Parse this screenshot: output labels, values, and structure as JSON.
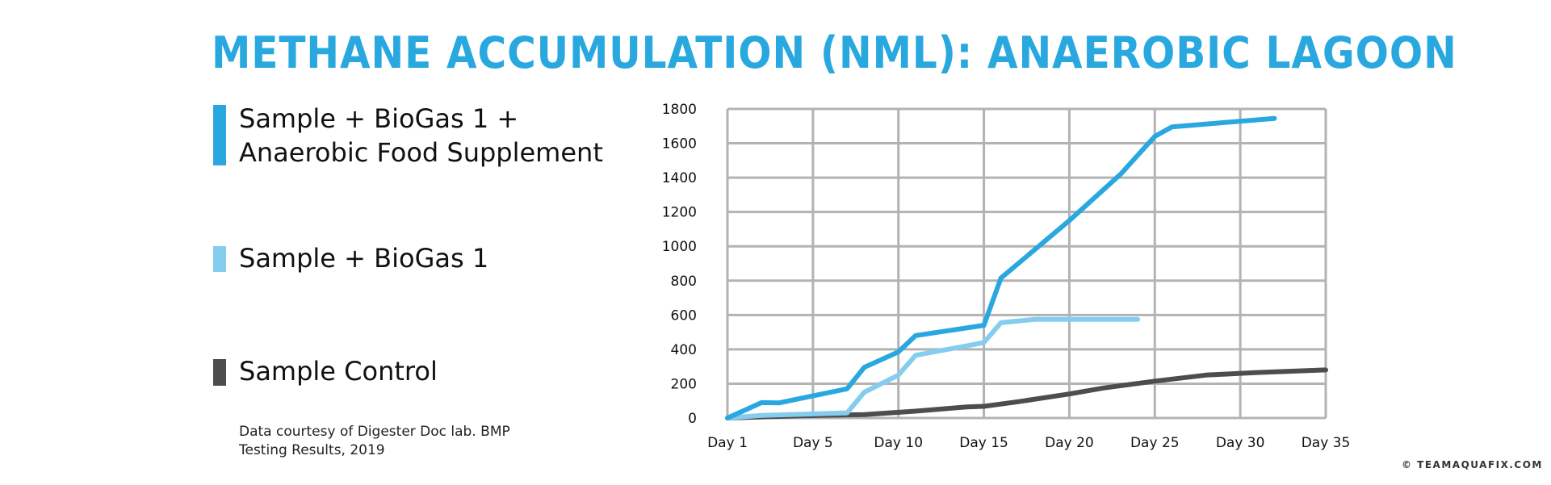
{
  "title": "METHANE ACCUMULATION (NML): ANAEROBIC LAGOON",
  "legend": [
    {
      "label_lines": [
        "Sample + BioGas 1 +",
        "Anaerobic Food Supplement"
      ],
      "color": "#29a8e0"
    },
    {
      "label_lines": [
        "Sample + BioGas 1"
      ],
      "color": "#85cdee"
    },
    {
      "label_lines": [
        "Sample Control"
      ],
      "color": "#4d4d4f"
    }
  ],
  "note": "Data courtesy of Digester Doc lab.  BMP Testing Results, 2019",
  "credit": "© TEAMAQUAFIX.COM",
  "chart_data": {
    "type": "line",
    "title": "METHANE ACCUMULATION (NML): ANAEROBIC LAGOON",
    "xlabel": "",
    "ylabel": "",
    "xlim": [
      1,
      35
    ],
    "ylim": [
      0,
      1800
    ],
    "x_ticks": [
      1,
      6,
      11,
      16,
      21,
      26,
      31,
      36
    ],
    "x_tick_labels": [
      "Day 1",
      "Day 5",
      "Day 10",
      "Day 15",
      "Day 20",
      "Day 25",
      "Day 30",
      "Day 35"
    ],
    "y_ticks": [
      0,
      200,
      400,
      600,
      800,
      1000,
      1200,
      1400,
      1600,
      1800
    ],
    "grid": true,
    "legend_position": "left",
    "series": [
      {
        "name": "Sample + BioGas 1 + Anaerobic Food Supplement",
        "color": "#29a8e0",
        "points": [
          [
            1,
            0
          ],
          [
            3,
            90
          ],
          [
            4,
            88
          ],
          [
            8,
            170
          ],
          [
            9,
            295
          ],
          [
            11,
            385
          ],
          [
            12,
            480
          ],
          [
            16,
            540
          ],
          [
            17,
            815
          ],
          [
            21,
            1150
          ],
          [
            24,
            1420
          ],
          [
            26,
            1640
          ],
          [
            27,
            1695
          ],
          [
            33,
            1745
          ]
        ]
      },
      {
        "name": "Sample + BioGas 1",
        "color": "#85cdee",
        "points": [
          [
            1,
            0
          ],
          [
            3,
            15
          ],
          [
            8,
            30
          ],
          [
            9,
            150
          ],
          [
            11,
            250
          ],
          [
            12,
            365
          ],
          [
            15,
            420
          ],
          [
            16,
            440
          ],
          [
            17,
            555
          ],
          [
            19,
            575
          ],
          [
            25,
            575
          ]
        ]
      },
      {
        "name": "Sample Control",
        "color": "#4d4d4f",
        "points": [
          [
            1,
            0
          ],
          [
            5,
            12
          ],
          [
            9,
            20
          ],
          [
            12,
            40
          ],
          [
            15,
            65
          ],
          [
            16,
            68
          ],
          [
            18,
            95
          ],
          [
            21,
            140
          ],
          [
            23,
            175
          ],
          [
            26,
            215
          ],
          [
            29,
            250
          ],
          [
            32,
            265
          ],
          [
            36,
            280
          ]
        ]
      }
    ]
  }
}
